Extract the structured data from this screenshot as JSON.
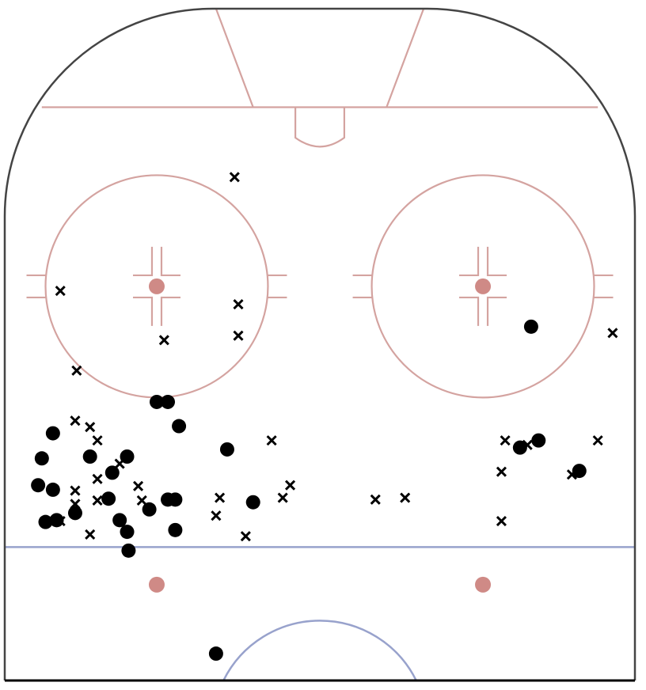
{
  "colors": {
    "boards": "#444444",
    "red_lines": "#d4a3a0",
    "red_dots": "#cf8a86",
    "blue_lines": "#98a2cc",
    "marker": "#000000",
    "background": "#ffffff"
  },
  "legend": {
    "shown": false
  },
  "chart_data": {
    "type": "scatter",
    "title": "",
    "xlabel": "",
    "ylabel": "",
    "grid": false,
    "xlim": [
      -42.5,
      42.5
    ],
    "ylim": [
      25,
      100
    ],
    "series": [
      {
        "marker": "x-icon",
        "points": [
          [
            -11.5,
            81.2
          ],
          [
            -35.0,
            68.5
          ],
          [
            -11.0,
            67.0
          ],
          [
            -11.0,
            63.5
          ],
          [
            -21.0,
            63.0
          ],
          [
            -32.8,
            59.6
          ],
          [
            -33.0,
            54.0
          ],
          [
            -31.0,
            53.3
          ],
          [
            -30.0,
            51.8
          ],
          [
            -6.5,
            51.8
          ],
          [
            -27.0,
            49.2
          ],
          [
            -30.0,
            47.5
          ],
          [
            -24.5,
            46.7
          ],
          [
            -33.0,
            46.2
          ],
          [
            -33.0,
            44.7
          ],
          [
            -30.0,
            45.1
          ],
          [
            -24.0,
            45.1
          ],
          [
            -13.5,
            45.4
          ],
          [
            -4.0,
            46.8
          ],
          [
            -5.0,
            45.4
          ],
          [
            -14.0,
            43.4
          ],
          [
            -35.0,
            42.8
          ],
          [
            -31.0,
            41.3
          ],
          [
            -26.0,
            41.7
          ],
          [
            -10.0,
            41.1
          ],
          [
            7.5,
            45.2
          ],
          [
            11.5,
            45.4
          ],
          [
            25.0,
            51.8
          ],
          [
            24.5,
            48.3
          ],
          [
            28.0,
            51.3
          ],
          [
            34.0,
            48.0
          ],
          [
            37.5,
            51.8
          ],
          [
            24.5,
            42.8
          ],
          [
            39.5,
            63.8
          ]
        ]
      },
      {
        "marker": "dot-icon",
        "points": [
          [
            -22.0,
            56.1
          ],
          [
            -20.5,
            56.1
          ],
          [
            -19.0,
            53.4
          ],
          [
            -36.0,
            52.6
          ],
          [
            -37.5,
            49.8
          ],
          [
            -31.0,
            50.0
          ],
          [
            -26.0,
            50.0
          ],
          [
            -28.0,
            48.2
          ],
          [
            -38.0,
            46.8
          ],
          [
            -36.0,
            46.3
          ],
          [
            -28.5,
            45.3
          ],
          [
            -20.5,
            45.2
          ],
          [
            -19.5,
            45.2
          ],
          [
            -12.5,
            50.8
          ],
          [
            -9.0,
            44.9
          ],
          [
            -23.0,
            44.1
          ],
          [
            -33.0,
            43.7
          ],
          [
            -37.0,
            42.7
          ],
          [
            -35.5,
            42.9
          ],
          [
            -27.0,
            42.9
          ],
          [
            -26.0,
            41.6
          ],
          [
            -19.5,
            41.8
          ],
          [
            -25.8,
            39.5
          ],
          [
            -14.0,
            28.0
          ],
          [
            28.5,
            64.5
          ],
          [
            27.0,
            51.0
          ],
          [
            29.5,
            51.8
          ],
          [
            35.0,
            48.4
          ]
        ]
      }
    ]
  }
}
